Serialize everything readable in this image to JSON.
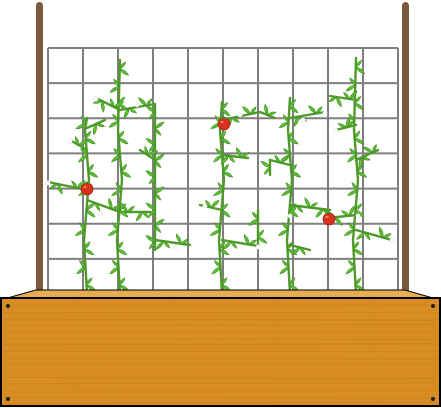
{
  "scene": {
    "colors": {
      "background": "#ffffff",
      "trellis_grid": "#7f7f7f",
      "trellis_post": "#7b5a3c",
      "vine_stem": "#4f9a2a",
      "leaf": "#5fbf34",
      "leaf_dark": "#3f8f22",
      "flower": "#ffffff",
      "tomato": "#d8321e",
      "tomato_highlight": "#f37a5a",
      "planter_wood": "#d78d24",
      "planter_top": "#e7ad52",
      "planter_outline": "#000000"
    },
    "plants": [
      {
        "name": "tomato-vine-1",
        "tomatoes": 1
      },
      {
        "name": "tomato-vine-2",
        "tomatoes": 0
      },
      {
        "name": "tomato-vine-3",
        "tomatoes": 1
      },
      {
        "name": "tomato-vine-4",
        "tomatoes": 0
      },
      {
        "name": "tomato-vine-5",
        "tomatoes": 1
      }
    ],
    "planter_screws": 4
  }
}
